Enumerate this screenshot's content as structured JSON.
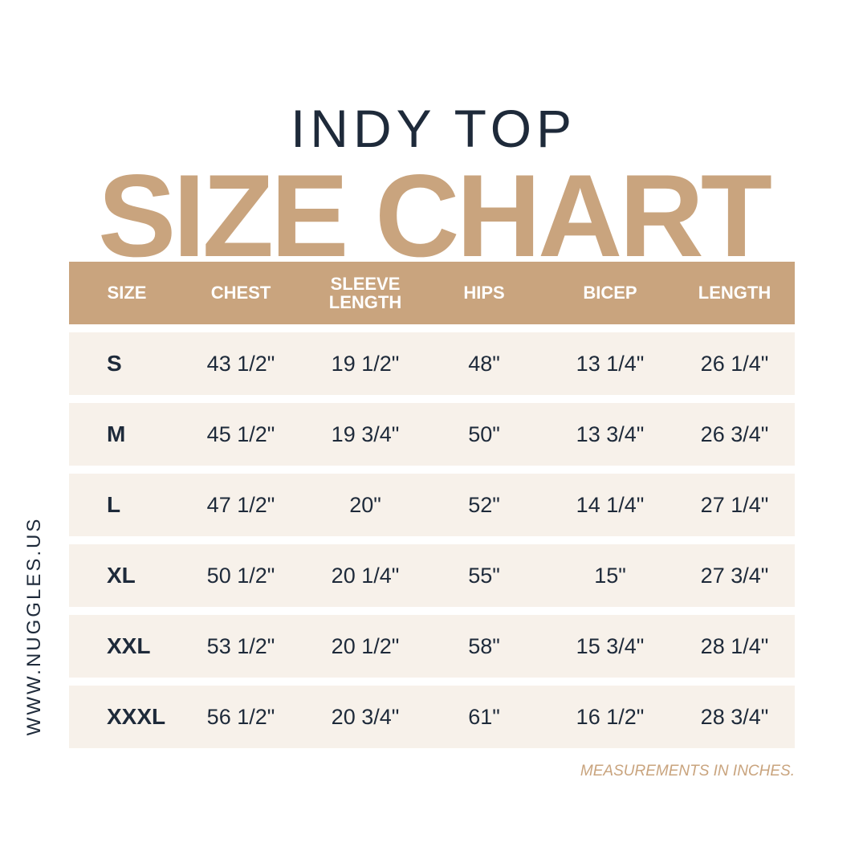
{
  "header": {
    "subtitle": "INDY TOP",
    "title": "SIZE CHART"
  },
  "table": {
    "columns": [
      "SIZE",
      "CHEST",
      "SLEEVE LENGTH",
      "HIPS",
      "BICEP",
      "LENGTH"
    ],
    "rows": [
      [
        "S",
        "43 1/2\"",
        "19 1/2\"",
        "48\"",
        "13 1/4\"",
        "26 1/4\""
      ],
      [
        "M",
        "45 1/2\"",
        "19 3/4\"",
        "50\"",
        "13 3/4\"",
        "26 3/4\""
      ],
      [
        "L",
        "47 1/2\"",
        "20\"",
        "52\"",
        "14 1/4\"",
        "27 1/4\""
      ],
      [
        "XL",
        "50 1/2\"",
        "20 1/4\"",
        "55\"",
        "15\"",
        "27 3/4\""
      ],
      [
        "XXL",
        "53 1/2\"",
        "20 1/2\"",
        "58\"",
        "15 3/4\"",
        "28 1/4\""
      ],
      [
        "XXXL",
        "56 1/2\"",
        "20 3/4\"",
        "61\"",
        "16 1/2\"",
        "28 3/4\""
      ]
    ]
  },
  "footnote": "MEASUREMENTS IN INCHES.",
  "website": "WWW.NUGGLES.US"
}
